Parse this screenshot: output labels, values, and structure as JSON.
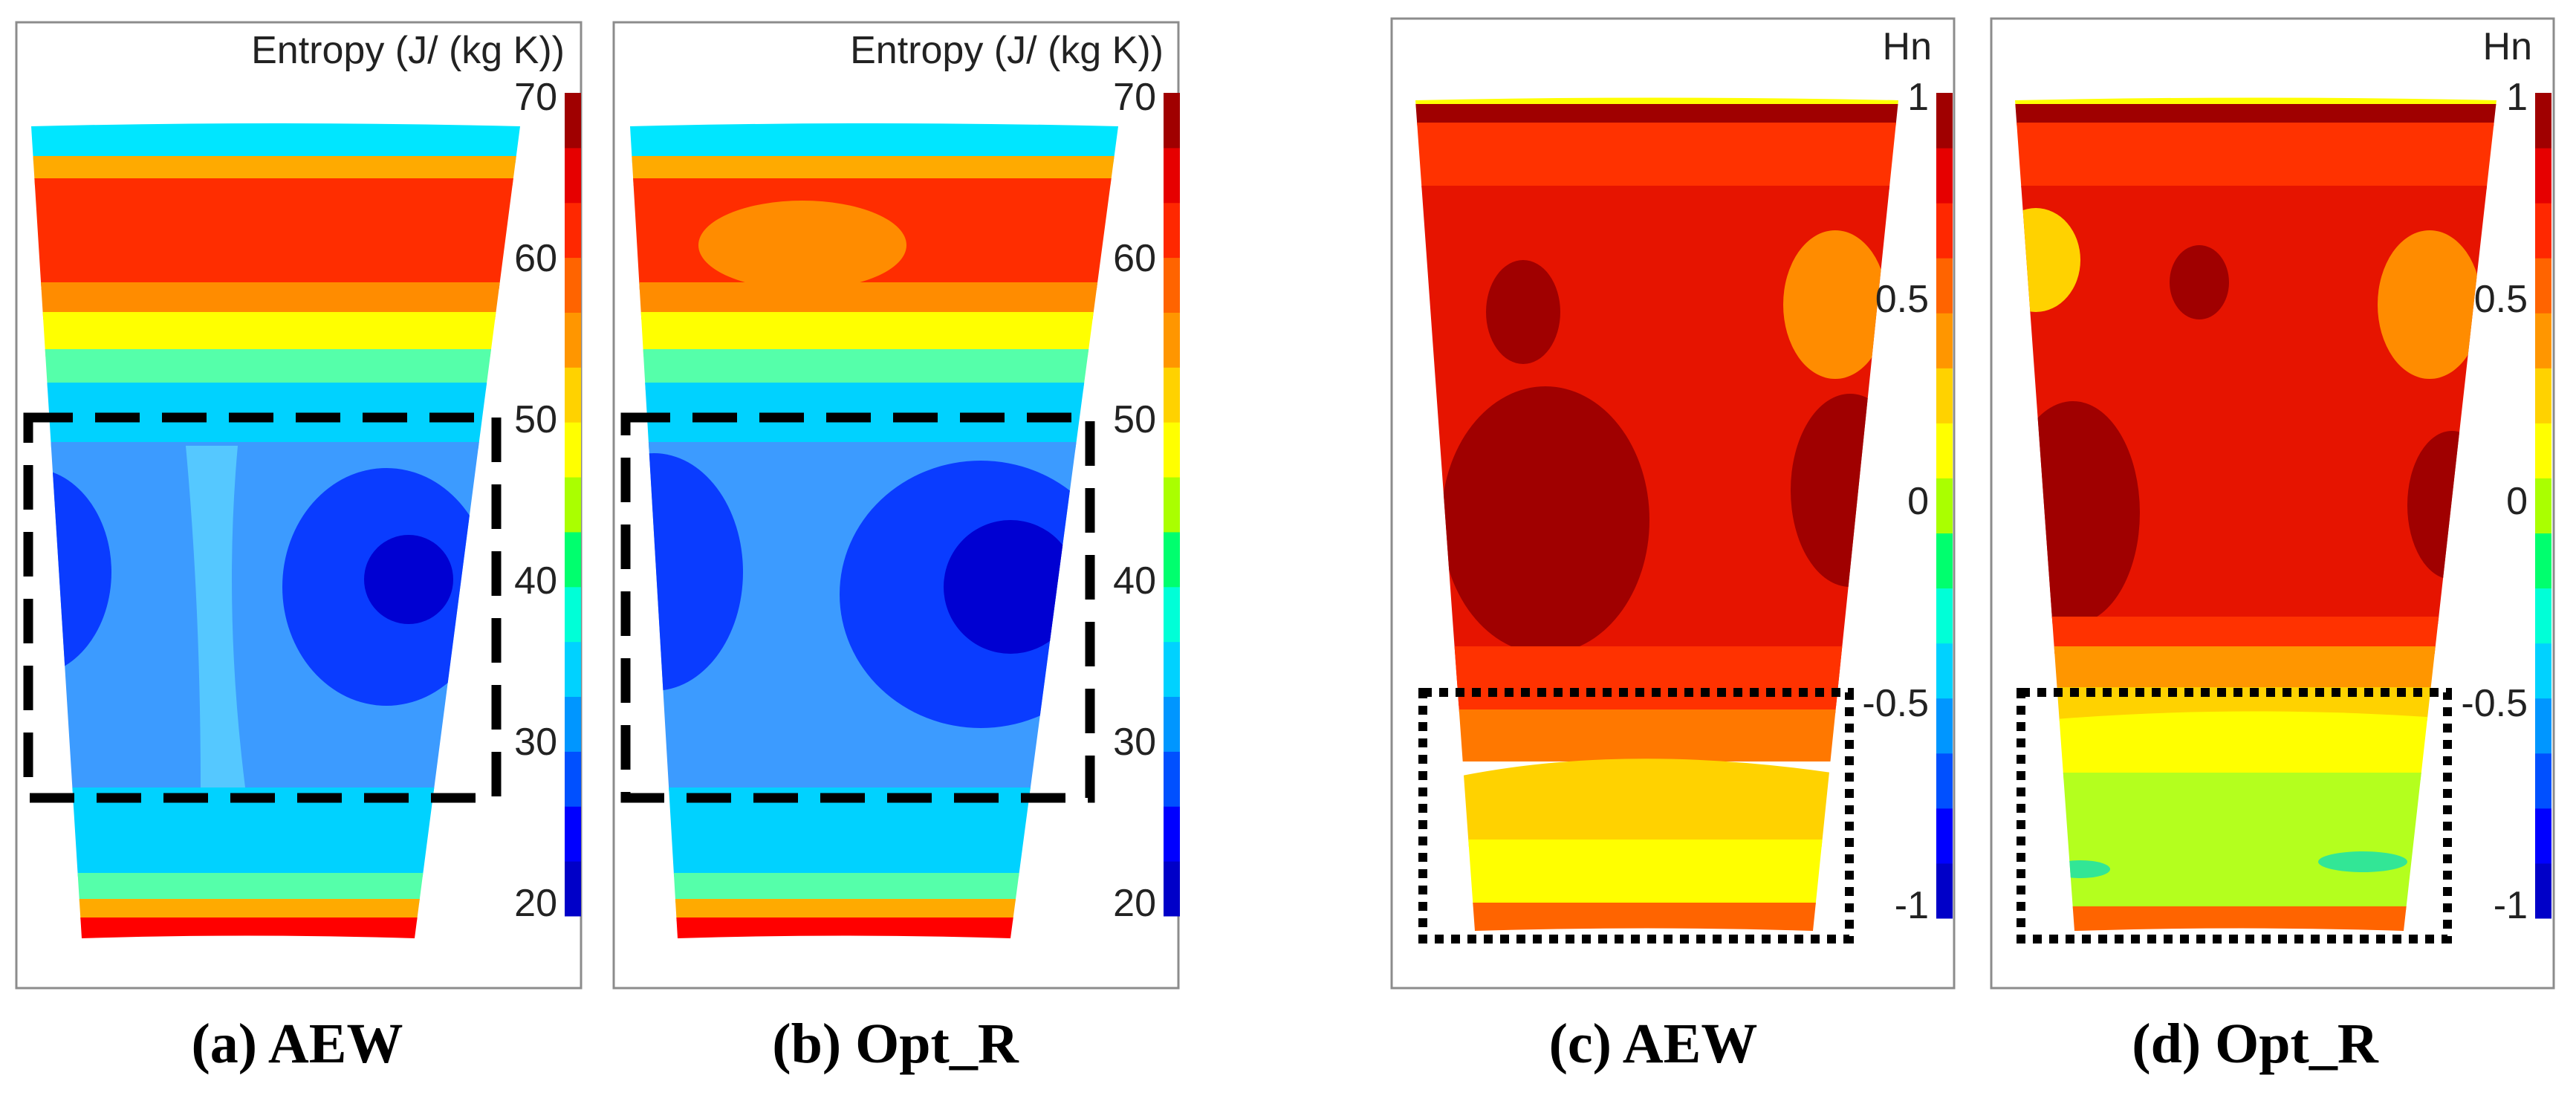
{
  "figure": {
    "panels": [
      {
        "id": "a",
        "caption": "(a) AEW",
        "colorbar": {
          "title": "Entropy (J/ (kg K))",
          "ticks": [
            "70",
            "60",
            "50",
            "40",
            "30",
            "20"
          ],
          "min": 20,
          "max": 70,
          "colors": [
            "#0000c8",
            "#0000ff",
            "#0050ff",
            "#0096ff",
            "#00d2ff",
            "#00ffd7",
            "#00ff6e",
            "#aaff00",
            "#ffff00",
            "#ffd200",
            "#ff9600",
            "#ff6400",
            "#ff2800",
            "#e60000",
            "#a00000"
          ]
        },
        "bands": [
          "#ff2d00",
          "#ffaa00",
          "#ffff00",
          "#55ffaa",
          "#00d2ff",
          "#3c9bff",
          "#0a3cff",
          "#3c9bff",
          "#00d2ff",
          "#55ffaa",
          "#ffaa00",
          "#ff0000"
        ],
        "highlight": "dashed-box"
      },
      {
        "id": "b",
        "caption": "(b) Opt_R",
        "colorbar": {
          "title": "Entropy (J/ (kg K))",
          "ticks": [
            "70",
            "60",
            "50",
            "40",
            "30",
            "20"
          ],
          "min": 20,
          "max": 70,
          "colors": [
            "#0000c8",
            "#0000ff",
            "#0050ff",
            "#0096ff",
            "#00d2ff",
            "#00ffd7",
            "#00ff6e",
            "#aaff00",
            "#ffff00",
            "#ffd200",
            "#ff9600",
            "#ff6400",
            "#ff2800",
            "#e60000",
            "#a00000"
          ]
        },
        "bands": [
          "#ff2d00",
          "#ffaa00",
          "#ffff00",
          "#55ffaa",
          "#00d2ff",
          "#3c9bff",
          "#0a3cff",
          "#3c9bff",
          "#00d2ff",
          "#55ffaa",
          "#ffaa00",
          "#ff0000"
        ],
        "highlight": "dashed-box"
      },
      {
        "id": "c",
        "caption": "(c) AEW",
        "colorbar": {
          "title": "Hn",
          "ticks": [
            "1",
            "0.5",
            "0",
            "-0.5",
            "-1"
          ],
          "min": -1,
          "max": 1,
          "colors": [
            "#0000c8",
            "#0000ff",
            "#0050ff",
            "#0096ff",
            "#00d2ff",
            "#00ffd7",
            "#00ff6e",
            "#aaff00",
            "#ffff00",
            "#ffd200",
            "#ff9600",
            "#ff6400",
            "#ff2800",
            "#e60000",
            "#a00000"
          ]
        },
        "bands": [
          "#e61400",
          "#ff3200",
          "#c80000",
          "#e61400",
          "#ff3200",
          "#ff7800",
          "#ffd200",
          "#ffff00",
          "#ff6400"
        ],
        "highlight": "dotted-box"
      },
      {
        "id": "d",
        "caption": "(d) Opt_R",
        "colorbar": {
          "title": "Hn",
          "ticks": [
            "1",
            "0.5",
            "0",
            "-0.5",
            "-1"
          ],
          "min": -1,
          "max": 1,
          "colors": [
            "#0000c8",
            "#0000ff",
            "#0050ff",
            "#0096ff",
            "#00d2ff",
            "#00ffd7",
            "#00ff6e",
            "#aaff00",
            "#ffff00",
            "#ffd200",
            "#ff9600",
            "#ff6400",
            "#ff2800",
            "#e60000",
            "#a00000"
          ]
        },
        "bands": [
          "#e61400",
          "#ff3200",
          "#c80000",
          "#e61400",
          "#ff6400",
          "#ffff00",
          "#b4ff1e",
          "#b4ff1e",
          "#ff6400"
        ],
        "highlight": "dotted-box"
      }
    ]
  }
}
